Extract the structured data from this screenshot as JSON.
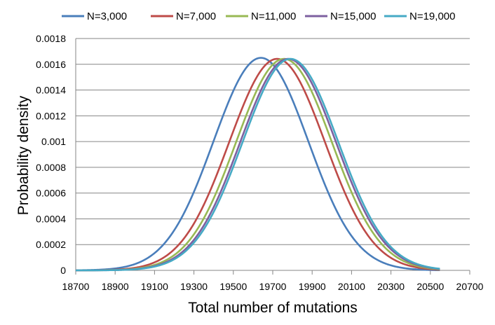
{
  "chart_data": {
    "type": "line",
    "title": "",
    "xlabel": "Total number of mutations",
    "ylabel": "Probability density",
    "xlim": [
      18700,
      20700
    ],
    "ylim": [
      0,
      0.0018
    ],
    "x_ticks": [
      "18700",
      "18900",
      "19100",
      "19300",
      "19500",
      "19700",
      "19900",
      "20100",
      "20300",
      "20500",
      "20700"
    ],
    "y_ticks": [
      "0",
      "0.0002",
      "0.0004",
      "0.0006",
      "0.0008",
      "0.001",
      "0.0012",
      "0.0014",
      "0.0016",
      "0.0018"
    ],
    "grid": "horizontal",
    "legend_position": "top",
    "x_range": [
      18700,
      20550
    ],
    "series": [
      {
        "name": "N=3,000",
        "color": "#4a7ebb",
        "mean": 19640,
        "sd": 241,
        "peak": 0.00165
      },
      {
        "name": "N=7,000",
        "color": "#be4b48",
        "mean": 19722,
        "sd": 243,
        "peak": 0.001642
      },
      {
        "name": "N=11,000",
        "color": "#98b954",
        "mean": 19757,
        "sd": 243,
        "peak": 0.001642
      },
      {
        "name": "N=15,000",
        "color": "#7d60a0",
        "mean": 19778,
        "sd": 243,
        "peak": 0.001642
      },
      {
        "name": "N=19,000",
        "color": "#46aac5",
        "mean": 19790,
        "sd": 243,
        "peak": 0.001642
      }
    ]
  }
}
